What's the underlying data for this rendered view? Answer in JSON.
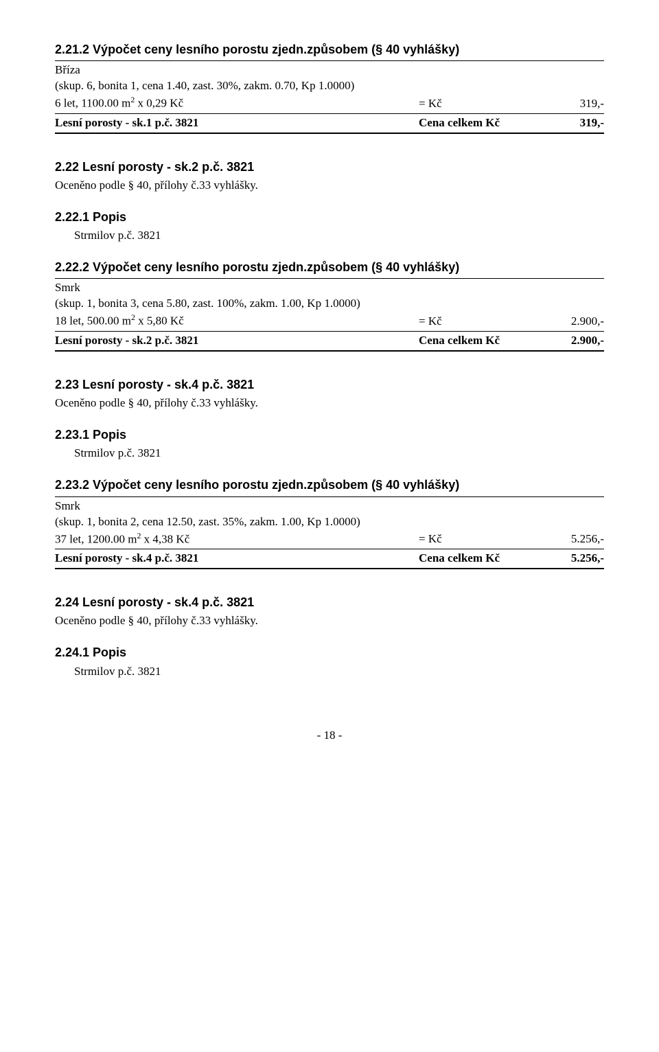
{
  "s21": {
    "calc_heading": "2.21.2 Výpočet ceny lesního porostu zjedn.způsobem (§ 40 vyhlášky)",
    "species": "Bříza",
    "params": "(skup. 6, bonita 1, cena 1.40, zast. 30%, zakm. 0.70, Kp 1.0000)",
    "calc_left": "6 let, 1100.00 m² x 0,29 Kč",
    "eq": "= Kč",
    "calc_val": "319,-",
    "total_left": "Lesní porosty - sk.1 p.č. 3821",
    "total_mid": "Cena celkem Kč",
    "total_val": "319,-"
  },
  "s22": {
    "heading": "2.22 Lesní porosty - sk.2 p.č. 3821",
    "sub": "Oceněno podle § 40, přílohy č.33 vyhlášky.",
    "popis_heading": "2.22.1 Popis",
    "popis_text": "Strmilov p.č. 3821",
    "calc_heading": "2.22.2 Výpočet ceny lesního porostu zjedn.způsobem (§ 40 vyhlášky)",
    "species": "Smrk",
    "params": "(skup. 1, bonita 3, cena 5.80, zast. 100%, zakm. 1.00, Kp 1.0000)",
    "calc_left": "18 let, 500.00 m² x 5,80 Kč",
    "eq": "= Kč",
    "calc_val": "2.900,-",
    "total_left": "Lesní porosty - sk.2 p.č. 3821",
    "total_mid": "Cena celkem Kč",
    "total_val": "2.900,-"
  },
  "s23": {
    "heading": "2.23 Lesní porosty - sk.4 p.č. 3821",
    "sub": "Oceněno podle § 40, přílohy č.33 vyhlášky.",
    "popis_heading": "2.23.1 Popis",
    "popis_text": "Strmilov p.č. 3821",
    "calc_heading": "2.23.2 Výpočet ceny lesního porostu zjedn.způsobem (§ 40 vyhlášky)",
    "species": "Smrk",
    "params": "(skup. 1, bonita 2, cena 12.50, zast. 35%, zakm. 1.00, Kp 1.0000)",
    "calc_left": "37 let, 1200.00 m² x 4,38 Kč",
    "eq": "= Kč",
    "calc_val": "5.256,-",
    "total_left": "Lesní porosty - sk.4 p.č. 3821",
    "total_mid": "Cena celkem Kč",
    "total_val": "5.256,-"
  },
  "s24": {
    "heading": "2.24 Lesní porosty - sk.4 p.č. 3821",
    "sub": "Oceněno podle § 40, přílohy č.33 vyhlášky.",
    "popis_heading": "2.24.1 Popis",
    "popis_text": "Strmilov p.č. 3821"
  },
  "page": "- 18 -"
}
